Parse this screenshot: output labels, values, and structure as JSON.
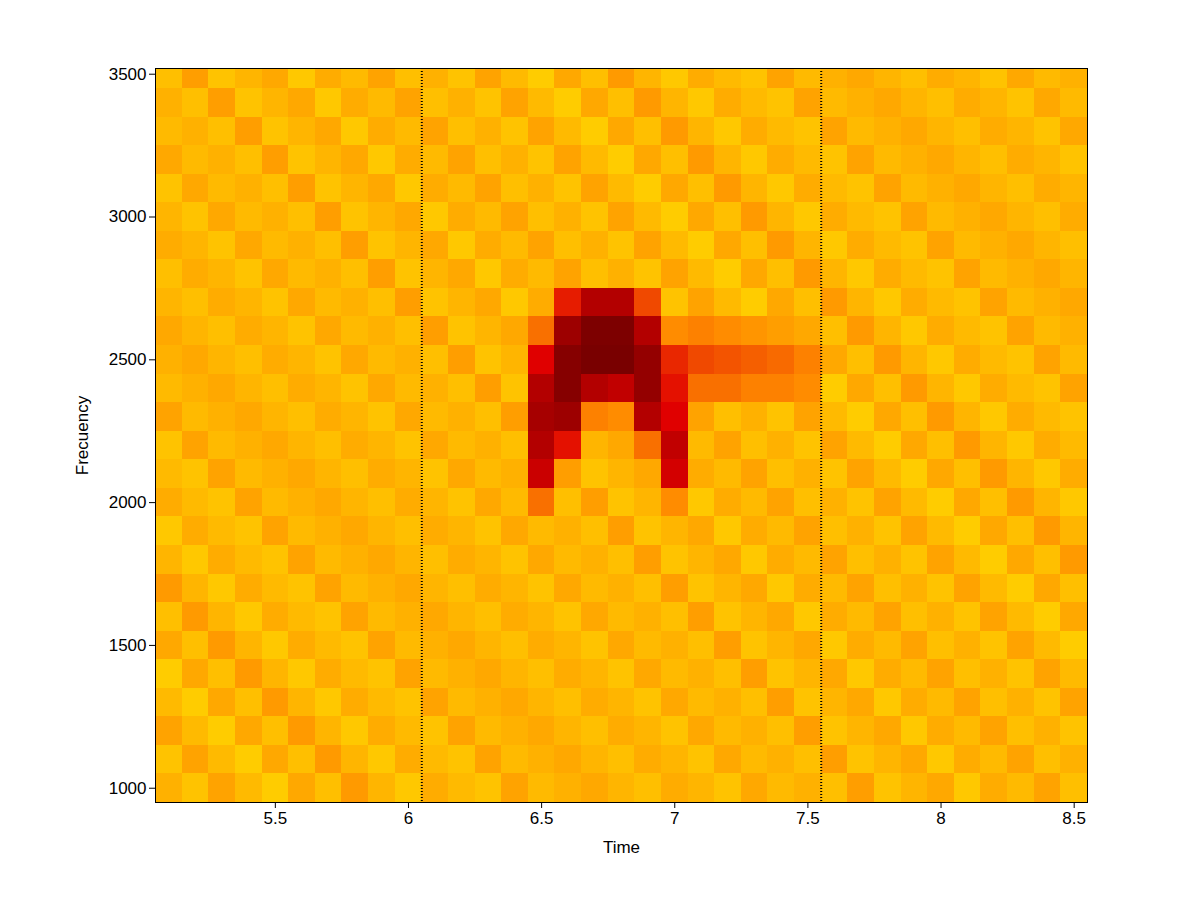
{
  "chart_data": {
    "type": "heatmap",
    "x_label": "Time",
    "y_label": "Frecuency",
    "xlim": [
      5.05,
      8.55
    ],
    "xticks": [
      5.5,
      6,
      6.5,
      7,
      7.5,
      8,
      8.5
    ],
    "ylim": [
      950,
      3520
    ],
    "yticks": [
      1000,
      1500,
      2000,
      2500,
      3000,
      3500
    ],
    "markers_x": [
      6.05,
      7.55
    ],
    "color_range": [
      0,
      100
    ],
    "time_bins": [
      5.05,
      5.15,
      5.25,
      5.35,
      5.45,
      5.55,
      5.65,
      5.75,
      5.85,
      5.95,
      6.05,
      6.15,
      6.25,
      6.35,
      6.45,
      6.55,
      6.65,
      6.75,
      6.85,
      6.95,
      7.05,
      7.15,
      7.25,
      7.35,
      7.45,
      7.55,
      7.65,
      7.75,
      7.85,
      7.95,
      8.05,
      8.15,
      8.25,
      8.35,
      8.45,
      8.55
    ],
    "frequency_bins": [
      950,
      1050,
      1150,
      1250,
      1350,
      1450,
      1550,
      1650,
      1750,
      1850,
      1950,
      2050,
      2150,
      2250,
      2350,
      2450,
      2550,
      2650,
      2750,
      2850,
      2950,
      3050,
      3150,
      3250,
      3350,
      3450,
      3550
    ],
    "cells": [
      [
        42,
        38,
        45,
        40,
        36,
        44,
        39,
        47,
        41,
        37,
        43,
        40,
        38,
        45,
        40,
        42,
        44,
        41,
        39,
        43,
        41,
        38,
        44,
        40,
        42,
        39,
        46,
        38,
        41,
        44,
        37,
        43,
        40,
        45,
        39
      ],
      [
        38,
        45,
        40,
        36,
        44,
        39,
        47,
        41,
        37,
        43,
        40,
        38,
        45,
        40,
        42,
        44,
        41,
        39,
        43,
        41,
        38,
        44,
        40,
        42,
        39,
        46,
        38,
        41,
        44,
        37,
        43,
        40,
        45,
        39,
        42
      ],
      [
        45,
        40,
        36,
        44,
        39,
        47,
        41,
        37,
        43,
        40,
        38,
        45,
        40,
        42,
        44,
        41,
        39,
        43,
        41,
        38,
        44,
        40,
        42,
        39,
        46,
        38,
        41,
        44,
        37,
        43,
        40,
        45,
        39,
        42,
        38
      ],
      [
        40,
        36,
        44,
        39,
        47,
        41,
        37,
        43,
        40,
        38,
        45,
        40,
        42,
        44,
        41,
        39,
        43,
        41,
        38,
        44,
        40,
        42,
        39,
        46,
        38,
        41,
        44,
        37,
        43,
        40,
        45,
        39,
        42,
        38,
        45
      ],
      [
        36,
        44,
        39,
        47,
        41,
        37,
        43,
        40,
        38,
        45,
        40,
        42,
        44,
        41,
        39,
        43,
        41,
        38,
        44,
        40,
        42,
        39,
        46,
        38,
        41,
        44,
        37,
        43,
        40,
        45,
        39,
        42,
        38,
        45,
        40
      ],
      [
        44,
        39,
        47,
        41,
        37,
        43,
        40,
        38,
        45,
        40,
        42,
        44,
        41,
        39,
        43,
        41,
        38,
        44,
        40,
        42,
        39,
        46,
        38,
        41,
        44,
        37,
        43,
        40,
        45,
        39,
        42,
        38,
        45,
        40,
        36
      ],
      [
        39,
        47,
        41,
        37,
        43,
        40,
        38,
        45,
        40,
        42,
        44,
        41,
        39,
        43,
        41,
        38,
        44,
        40,
        42,
        39,
        46,
        38,
        41,
        44,
        37,
        43,
        40,
        45,
        39,
        42,
        38,
        45,
        40,
        36,
        44
      ],
      [
        47,
        41,
        37,
        43,
        40,
        38,
        45,
        40,
        42,
        44,
        41,
        39,
        43,
        41,
        38,
        44,
        40,
        42,
        39,
        46,
        38,
        41,
        44,
        37,
        43,
        40,
        45,
        39,
        42,
        38,
        45,
        40,
        36,
        44,
        39
      ],
      [
        41,
        37,
        43,
        40,
        38,
        45,
        40,
        42,
        44,
        41,
        39,
        43,
        41,
        38,
        44,
        40,
        42,
        39,
        46,
        38,
        41,
        44,
        37,
        43,
        40,
        45,
        39,
        42,
        38,
        45,
        40,
        36,
        44,
        39,
        47
      ],
      [
        37,
        43,
        40,
        38,
        45,
        40,
        42,
        44,
        41,
        39,
        43,
        41,
        38,
        44,
        40,
        42,
        39,
        46,
        38,
        41,
        44,
        37,
        43,
        40,
        45,
        39,
        42,
        38,
        45,
        40,
        36,
        44,
        39,
        47,
        41
      ],
      [
        43,
        40,
        38,
        45,
        40,
        42,
        44,
        41,
        39,
        43,
        41,
        38,
        44,
        40,
        55,
        39,
        46,
        38,
        41,
        50,
        37,
        43,
        40,
        45,
        39,
        42,
        38,
        45,
        40,
        36,
        44,
        39,
        47,
        41,
        37
      ],
      [
        40,
        38,
        45,
        40,
        42,
        44,
        41,
        39,
        43,
        41,
        38,
        44,
        40,
        42,
        80,
        46,
        38,
        41,
        44,
        78,
        43,
        40,
        45,
        39,
        42,
        38,
        45,
        40,
        36,
        44,
        39,
        47,
        41,
        37,
        43
      ],
      [
        38,
        45,
        40,
        42,
        44,
        41,
        39,
        43,
        41,
        38,
        44,
        40,
        42,
        39,
        85,
        72,
        41,
        44,
        55,
        82,
        40,
        45,
        39,
        42,
        38,
        45,
        40,
        36,
        44,
        39,
        47,
        41,
        37,
        43,
        40
      ],
      [
        45,
        40,
        42,
        44,
        41,
        39,
        43,
        41,
        38,
        44,
        40,
        42,
        39,
        46,
        88,
        90,
        52,
        50,
        85,
        75,
        45,
        39,
        42,
        38,
        45,
        40,
        36,
        44,
        39,
        47,
        41,
        37,
        43,
        40,
        38
      ],
      [
        40,
        42,
        44,
        41,
        39,
        43,
        41,
        38,
        44,
        40,
        42,
        39,
        46,
        38,
        85,
        95,
        85,
        82,
        92,
        72,
        55,
        55,
        52,
        52,
        50,
        36,
        44,
        39,
        47,
        41,
        37,
        43,
        40,
        38,
        45
      ],
      [
        42,
        44,
        41,
        39,
        43,
        41,
        38,
        44,
        40,
        42,
        39,
        46,
        38,
        41,
        75,
        95,
        98,
        98,
        92,
        68,
        62,
        60,
        58,
        56,
        52,
        44,
        39,
        47,
        41,
        37,
        43,
        40,
        38,
        45,
        40
      ],
      [
        44,
        41,
        39,
        43,
        41,
        38,
        44,
        40,
        42,
        39,
        46,
        38,
        41,
        44,
        55,
        90,
        97,
        97,
        85,
        50,
        52,
        50,
        48,
        46,
        44,
        39,
        47,
        41,
        37,
        43,
        40,
        38,
        45,
        40,
        42
      ],
      [
        41,
        39,
        43,
        41,
        38,
        44,
        40,
        42,
        39,
        46,
        38,
        41,
        44,
        37,
        43,
        70,
        85,
        85,
        62,
        38,
        45,
        40,
        36,
        44,
        39,
        47,
        41,
        37,
        43,
        40,
        38,
        45,
        40,
        42,
        44
      ],
      [
        39,
        43,
        41,
        38,
        44,
        40,
        42,
        39,
        46,
        38,
        41,
        44,
        37,
        43,
        40,
        45,
        39,
        42,
        38,
        45,
        40,
        36,
        44,
        39,
        47,
        41,
        37,
        43,
        40,
        38,
        45,
        40,
        42,
        44,
        41
      ],
      [
        43,
        41,
        38,
        44,
        40,
        42,
        39,
        46,
        38,
        41,
        44,
        37,
        43,
        40,
        45,
        39,
        42,
        38,
        45,
        40,
        36,
        44,
        39,
        47,
        41,
        37,
        43,
        40,
        38,
        45,
        40,
        42,
        44,
        41,
        39
      ],
      [
        41,
        38,
        44,
        40,
        42,
        39,
        46,
        38,
        41,
        44,
        37,
        43,
        40,
        45,
        39,
        42,
        38,
        45,
        40,
        36,
        44,
        39,
        47,
        41,
        37,
        43,
        40,
        38,
        45,
        40,
        42,
        44,
        41,
        39,
        43
      ],
      [
        38,
        44,
        40,
        42,
        39,
        46,
        38,
        41,
        44,
        37,
        43,
        40,
        45,
        39,
        42,
        38,
        45,
        40,
        36,
        44,
        39,
        47,
        41,
        37,
        43,
        40,
        38,
        45,
        40,
        42,
        44,
        41,
        39,
        43,
        41
      ],
      [
        44,
        40,
        42,
        39,
        46,
        38,
        41,
        44,
        37,
        43,
        40,
        45,
        39,
        42,
        38,
        45,
        40,
        36,
        44,
        39,
        47,
        41,
        37,
        43,
        40,
        38,
        45,
        40,
        42,
        44,
        41,
        39,
        43,
        41,
        38
      ],
      [
        40,
        42,
        39,
        46,
        38,
        41,
        44,
        37,
        43,
        40,
        45,
        39,
        42,
        38,
        45,
        40,
        36,
        44,
        39,
        47,
        41,
        37,
        43,
        40,
        38,
        45,
        40,
        42,
        44,
        41,
        39,
        43,
        41,
        38,
        44
      ],
      [
        42,
        39,
        46,
        38,
        41,
        44,
        37,
        43,
        40,
        45,
        39,
        42,
        38,
        45,
        40,
        36,
        44,
        39,
        47,
        41,
        37,
        43,
        40,
        38,
        45,
        40,
        42,
        44,
        41,
        39,
        43,
        41,
        38,
        44,
        40
      ],
      [
        39,
        46,
        38,
        41,
        44,
        37,
        43,
        40,
        45,
        39,
        42,
        38,
        45,
        40,
        36,
        44,
        39,
        47,
        41,
        37,
        43,
        40,
        38,
        45,
        40,
        42,
        44,
        41,
        39,
        43,
        41,
        38,
        44,
        40,
        42
      ]
    ]
  }
}
